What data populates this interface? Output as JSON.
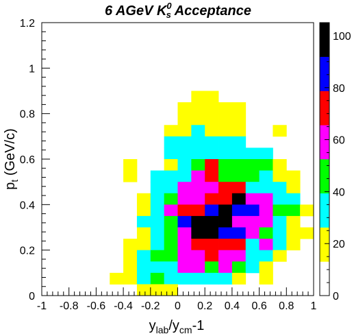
{
  "chart_data": {
    "type": "heatmap",
    "title": {
      "main": "6 AGeV K",
      "superscript": "0",
      "subscript": "s",
      "suffix": " Acceptance"
    },
    "xlabel": {
      "base": "y",
      "sub1": "lab",
      "mid": "/y",
      "sub2": "cm",
      "suffix": "-1"
    },
    "ylabel": {
      "base": "p",
      "sub": "t",
      "suffix": " (GeV/c)"
    },
    "xlim": [
      -1,
      1
    ],
    "ylim": [
      0,
      1.2
    ],
    "x_ticks": [
      "-1",
      "-0.8",
      "-0.6",
      "-0.4",
      "-0.2",
      "0",
      "0.2",
      "0.4",
      "0.6",
      "0.8",
      "1"
    ],
    "y_ticks": [
      "0",
      "0.2",
      "0.4",
      "0.6",
      "0.8",
      "1",
      "1.2"
    ],
    "bin_width_x": 0.1,
    "bin_width_y": 0.05,
    "x_bin_start": -0.6,
    "y_bin_start": 0,
    "colorbar": {
      "ticks": [
        "0",
        "20",
        "40",
        "60",
        "80",
        "100"
      ],
      "range": [
        0,
        105
      ],
      "levels": [
        {
          "from": 0,
          "to": 13.1,
          "color": "#ffffff"
        },
        {
          "from": 13.1,
          "to": 26.25,
          "color": "#ffff00"
        },
        {
          "from": 26.25,
          "to": 39.4,
          "color": "#00ffff"
        },
        {
          "from": 39.4,
          "to": 52.5,
          "color": "#00ff00"
        },
        {
          "from": 52.5,
          "to": 65.6,
          "color": "#ff00ff"
        },
        {
          "from": 65.6,
          "to": 78.75,
          "color": "#ff0000"
        },
        {
          "from": 78.75,
          "to": 91.9,
          "color": "#0000ff"
        },
        {
          "from": 91.9,
          "to": 105,
          "color": "#000000"
        }
      ]
    },
    "level_values": [
      0,
      20,
      33,
      46,
      59,
      72,
      85,
      98
    ],
    "grid_rows_top_to_bottom": [
      "................",
      "................",
      "................",
      "................",
      "................",
      "................",
      "................",
      ".......YY.......",
      "......YYYYY.....",
      "......YYYYY.....",
      ".....YYCYYY..Y..",
      ".....CCCCCC.....",
      ".....CCCCCCCC...",
      "..Y..YCGRGGGGY..",
      "..Y.CCCMRGGGCYY.",
      "....CCMMMRRCCCY.",
      "...YCGMMRRKMMCC.",
      "...YCMRRBKBBMGGY",
      "...CCGBKKKMMMCY.",
      "...YCGMKKBBMGCYY",
      "..YYCGMRRRRCMCY.",
      "..YCGGMMRMMCCY..",
      "..YCCCMMGMGCY...",
      ".YYCGCCCCCY.Y...",
      "...YYY.........."
    ]
  }
}
